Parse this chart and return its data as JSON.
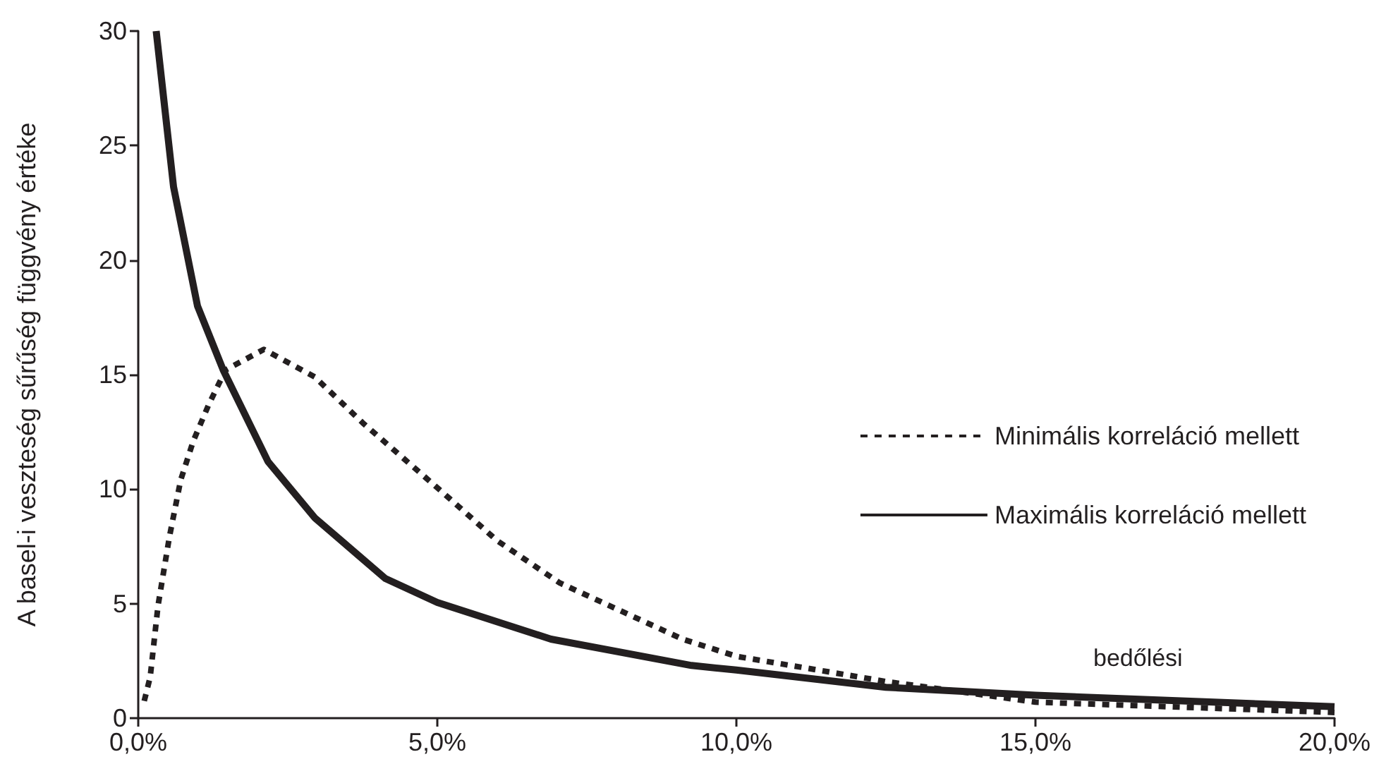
{
  "chart_data": {
    "type": "line",
    "ylabel": "A basel-i veszteség sűrűség függvény értéke",
    "annotations": [
      "bedőlési"
    ],
    "xlim": [
      0,
      20
    ],
    "xticks": [
      {
        "value": 0,
        "label": "0,0%"
      },
      {
        "value": 5,
        "label": "5,0%"
      },
      {
        "value": 10,
        "label": "10,0%"
      },
      {
        "value": 15,
        "label": "15,0%"
      },
      {
        "value": 20,
        "label": "20,0%"
      }
    ],
    "ylim": [
      0,
      30
    ],
    "yticks": [
      0,
      5,
      10,
      15,
      20,
      25,
      30
    ],
    "grid": false,
    "legend": "right",
    "marker": "none",
    "series": [
      {
        "name": "Minimális korreláció mellett",
        "color": "#231f20",
        "line_style": "dashed",
        "x": [
          0.1,
          0.2,
          0.33,
          0.52,
          0.71,
          0.92,
          1.18,
          1.46,
          2.1,
          2.95,
          3.75,
          5.07,
          6.0,
          7.05,
          9.1,
          10,
          12.5,
          15,
          20
        ],
        "values": [
          0.75,
          1.8,
          4.9,
          7.9,
          10.4,
          12.1,
          13.7,
          15.2,
          16.1,
          14.9,
          12.9,
          9.9,
          7.75,
          5.9,
          3.45,
          2.7,
          1.6,
          0.7,
          0.25
        ]
      },
      {
        "name": "Maximális korreláció mellett",
        "color": "#231f20",
        "line_style": "solid",
        "x": [
          0.3,
          0.59,
          0.99,
          1.42,
          2.17,
          2.95,
          4.13,
          5.0,
          6.9,
          9.25,
          10,
          12.5,
          15,
          20
        ],
        "values": [
          30,
          23.2,
          18.0,
          15.2,
          11.2,
          8.75,
          6.1,
          5.05,
          3.45,
          2.3,
          2.1,
          1.35,
          1.0,
          0.5
        ]
      }
    ]
  }
}
